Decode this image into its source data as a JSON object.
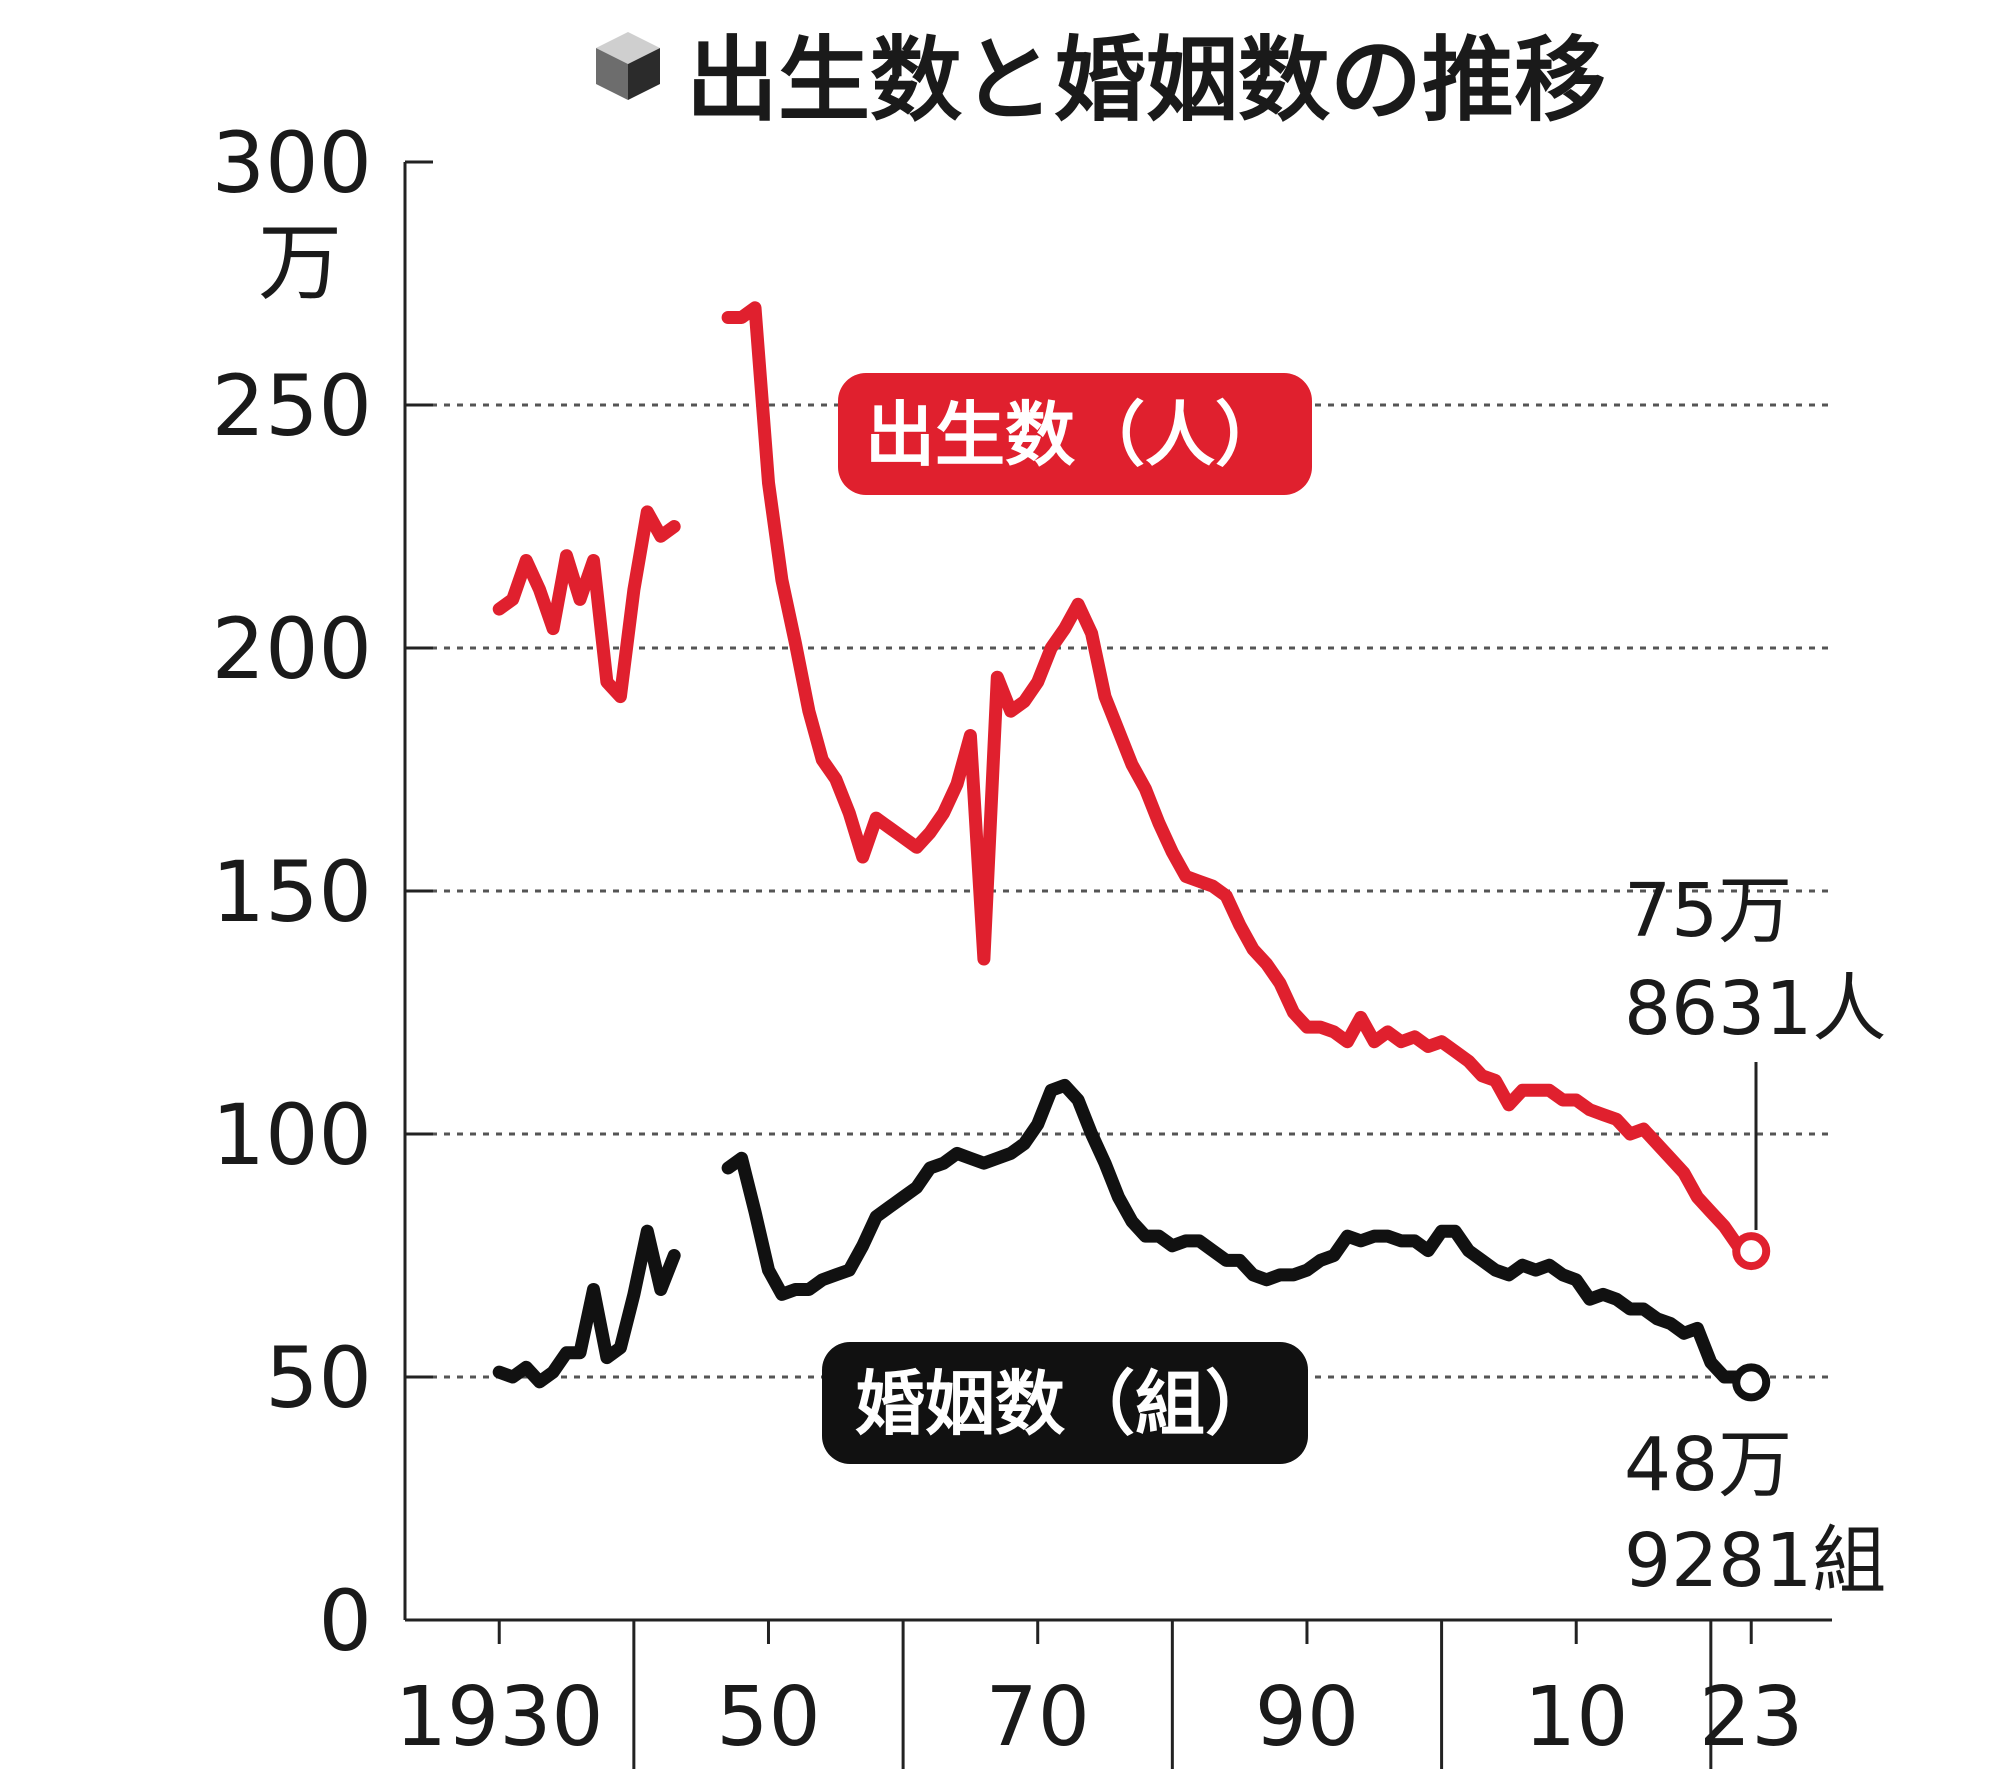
{
  "chart_data": {
    "type": "line",
    "title": "出生数と婚姻数の推移",
    "ylim": [
      0,
      300
    ],
    "y_ticks": [
      {
        "value": 300,
        "label": "300"
      },
      {
        "value": 250,
        "label": "250"
      },
      {
        "value": 200,
        "label": "200"
      },
      {
        "value": 150,
        "label": "150"
      },
      {
        "value": 100,
        "label": "100"
      },
      {
        "value": 50,
        "label": "50"
      },
      {
        "value": 0,
        "label": "0"
      }
    ],
    "y_unit": "万",
    "xlim": [
      1923,
      2029
    ],
    "x_ticks": [
      {
        "value": 1930,
        "label": "1930"
      },
      {
        "value": 1950,
        "label": "50"
      },
      {
        "value": 1970,
        "label": "70"
      },
      {
        "value": 1990,
        "label": "90"
      },
      {
        "value": 2010,
        "label": "10"
      },
      {
        "value": 2023,
        "label": "23"
      }
    ],
    "grid": "horizontal dotted",
    "colors": {
      "births": "#e0202e",
      "marriages": "#111111",
      "axis": "#222222",
      "grid": "#555555"
    },
    "series": [
      {
        "name": "出生数（人）",
        "key": "births",
        "segments": [
          [
            [
              1930,
              208
            ],
            [
              1931,
              210
            ],
            [
              1932,
              218
            ],
            [
              1933,
              212
            ],
            [
              1934,
              204
            ],
            [
              1935,
              219
            ],
            [
              1936,
              210
            ],
            [
              1937,
              218
            ],
            [
              1938,
              193
            ],
            [
              1939,
              190
            ],
            [
              1940,
              212
            ],
            [
              1941,
              228
            ],
            [
              1942,
              223
            ],
            [
              1943,
              225
            ]
          ],
          [
            [
              1947,
              268
            ],
            [
              1948,
              268
            ],
            [
              1949,
              270
            ],
            [
              1950,
              234
            ],
            [
              1951,
              214
            ],
            [
              1952,
              201
            ],
            [
              1953,
              187
            ],
            [
              1954,
              177
            ],
            [
              1955,
              173
            ],
            [
              1956,
              166
            ],
            [
              1957,
              157
            ],
            [
              1958,
              165
            ],
            [
              1959,
              163
            ],
            [
              1960,
              161
            ],
            [
              1961,
              159
            ],
            [
              1962,
              162
            ],
            [
              1963,
              166
            ],
            [
              1964,
              172
            ],
            [
              1965,
              182
            ],
            [
              1966,
              136
            ],
            [
              1967,
              194
            ],
            [
              1968,
              187
            ],
            [
              1969,
              189
            ],
            [
              1970,
              193
            ],
            [
              1971,
              200
            ],
            [
              1972,
              204
            ],
            [
              1973,
              209
            ],
            [
              1974,
              203
            ],
            [
              1975,
              190
            ],
            [
              1976,
              183
            ],
            [
              1977,
              176
            ],
            [
              1978,
              171
            ],
            [
              1979,
              164
            ],
            [
              1980,
              158
            ],
            [
              1981,
              153
            ],
            [
              1982,
              152
            ],
            [
              1983,
              151
            ],
            [
              1984,
              149
            ],
            [
              1985,
              143
            ],
            [
              1986,
              138
            ],
            [
              1987,
              135
            ],
            [
              1988,
              131
            ],
            [
              1989,
              125
            ],
            [
              1990,
              122
            ],
            [
              1991,
              122
            ],
            [
              1992,
              121
            ],
            [
              1993,
              119
            ],
            [
              1994,
              124
            ],
            [
              1995,
              119
            ],
            [
              1996,
              121
            ],
            [
              1997,
              119
            ],
            [
              1998,
              120
            ],
            [
              1999,
              118
            ],
            [
              2000,
              119
            ],
            [
              2001,
              117
            ],
            [
              2002,
              115
            ],
            [
              2003,
              112
            ],
            [
              2004,
              111
            ],
            [
              2005,
              106
            ],
            [
              2006,
              109
            ],
            [
              2007,
              109
            ],
            [
              2008,
              109
            ],
            [
              2009,
              107
            ],
            [
              2010,
              107
            ],
            [
              2011,
              105
            ],
            [
              2012,
              104
            ],
            [
              2013,
              103
            ],
            [
              2014,
              100
            ],
            [
              2015,
              101
            ],
            [
              2016,
              98
            ],
            [
              2017,
              95
            ],
            [
              2018,
              92
            ],
            [
              2019,
              87
            ],
            [
              2020,
              84
            ],
            [
              2021,
              81
            ],
            [
              2022,
              77
            ],
            [
              2023,
              75.9
            ]
          ]
        ]
      },
      {
        "name": "婚姻数（組）",
        "key": "marriages",
        "segments": [
          [
            [
              1930,
              51
            ],
            [
              1931,
              50
            ],
            [
              1932,
              52
            ],
            [
              1933,
              49
            ],
            [
              1934,
              51
            ],
            [
              1935,
              55
            ],
            [
              1936,
              55
            ],
            [
              1937,
              68
            ],
            [
              1938,
              54
            ],
            [
              1939,
              56
            ],
            [
              1940,
              67
            ],
            [
              1941,
              80
            ],
            [
              1942,
              68
            ],
            [
              1943,
              75
            ]
          ],
          [
            [
              1947,
              93
            ],
            [
              1948,
              95
            ],
            [
              1949,
              84
            ],
            [
              1950,
              72
            ],
            [
              1951,
              67
            ],
            [
              1952,
              68
            ],
            [
              1953,
              68
            ],
            [
              1954,
              70
            ],
            [
              1955,
              71
            ],
            [
              1956,
              72
            ],
            [
              1957,
              77
            ],
            [
              1958,
              83
            ],
            [
              1959,
              85
            ],
            [
              1960,
              87
            ],
            [
              1961,
              89
            ],
            [
              1962,
              93
            ],
            [
              1963,
              94
            ],
            [
              1964,
              96
            ],
            [
              1965,
              95
            ],
            [
              1966,
              94
            ],
            [
              1967,
              95
            ],
            [
              1968,
              96
            ],
            [
              1969,
              98
            ],
            [
              1970,
              102
            ],
            [
              1971,
              109
            ],
            [
              1972,
              110
            ],
            [
              1973,
              107
            ],
            [
              1974,
              100
            ],
            [
              1975,
              94
            ],
            [
              1976,
              87
            ],
            [
              1977,
              82
            ],
            [
              1978,
              79
            ],
            [
              1979,
              79
            ],
            [
              1980,
              77
            ],
            [
              1981,
              78
            ],
            [
              1982,
              78
            ],
            [
              1983,
              76
            ],
            [
              1984,
              74
            ],
            [
              1985,
              74
            ],
            [
              1986,
              71
            ],
            [
              1987,
              70
            ],
            [
              1988,
              71
            ],
            [
              1989,
              71
            ],
            [
              1990,
              72
            ],
            [
              1991,
              74
            ],
            [
              1992,
              75
            ],
            [
              1993,
              79
            ],
            [
              1994,
              78
            ],
            [
              1995,
              79
            ],
            [
              1996,
              79
            ],
            [
              1997,
              78
            ],
            [
              1998,
              78
            ],
            [
              1999,
              76
            ],
            [
              2000,
              80
            ],
            [
              2001,
              80
            ],
            [
              2002,
              76
            ],
            [
              2003,
              74
            ],
            [
              2004,
              72
            ],
            [
              2005,
              71
            ],
            [
              2006,
              73
            ],
            [
              2007,
              72
            ],
            [
              2008,
              73
            ],
            [
              2009,
              71
            ],
            [
              2010,
              70
            ],
            [
              2011,
              66
            ],
            [
              2012,
              67
            ],
            [
              2013,
              66
            ],
            [
              2014,
              64
            ],
            [
              2015,
              64
            ],
            [
              2016,
              62
            ],
            [
              2017,
              61
            ],
            [
              2018,
              59
            ],
            [
              2019,
              60
            ],
            [
              2020,
              53
            ],
            [
              2021,
              50
            ],
            [
              2022,
              50
            ],
            [
              2023,
              48.9
            ]
          ]
        ]
      }
    ],
    "annotations": {
      "births_end_line1": "75万",
      "births_end_line2": "8631人",
      "marriages_end_line1": "48万",
      "marriages_end_line2": "9281組"
    }
  }
}
